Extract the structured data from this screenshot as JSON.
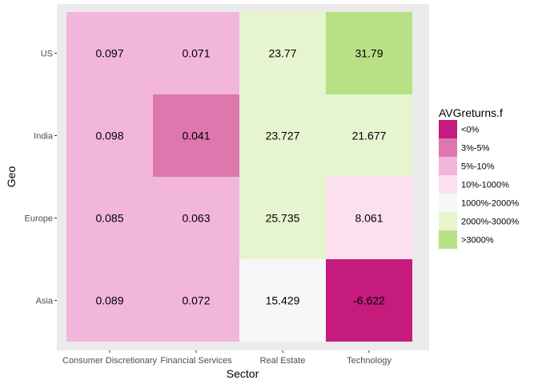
{
  "chart_data": {
    "type": "heatmap",
    "xlabel": "Sector",
    "ylabel": "Geo",
    "x_categories": [
      "Consumer Discretionary",
      "Financial Services",
      "Real Estate",
      "Technology"
    ],
    "y_categories": [
      "Asia",
      "Europe",
      "India",
      "US"
    ],
    "cells": [
      {
        "x": "Consumer Discretionary",
        "y": "US",
        "value": "0.097",
        "bin": "5%-10%"
      },
      {
        "x": "Financial Services",
        "y": "US",
        "value": "0.071",
        "bin": "5%-10%"
      },
      {
        "x": "Real Estate",
        "y": "US",
        "value": "23.77",
        "bin": "2000%-3000%"
      },
      {
        "x": "Technology",
        "y": "US",
        "value": "31.79",
        "bin": ">3000%"
      },
      {
        "x": "Consumer Discretionary",
        "y": "India",
        "value": "0.098",
        "bin": "5%-10%"
      },
      {
        "x": "Financial Services",
        "y": "India",
        "value": "0.041",
        "bin": "3%-5%"
      },
      {
        "x": "Real Estate",
        "y": "India",
        "value": "23.727",
        "bin": "2000%-3000%"
      },
      {
        "x": "Technology",
        "y": "India",
        "value": "21.677",
        "bin": "2000%-3000%"
      },
      {
        "x": "Consumer Discretionary",
        "y": "Europe",
        "value": "0.085",
        "bin": "5%-10%"
      },
      {
        "x": "Financial Services",
        "y": "Europe",
        "value": "0.063",
        "bin": "5%-10%"
      },
      {
        "x": "Real Estate",
        "y": "Europe",
        "value": "25.735",
        "bin": "2000%-3000%"
      },
      {
        "x": "Technology",
        "y": "Europe",
        "value": "8.061",
        "bin": "10%-1000%"
      },
      {
        "x": "Consumer Discretionary",
        "y": "Asia",
        "value": "0.089",
        "bin": "5%-10%"
      },
      {
        "x": "Financial Services",
        "y": "Asia",
        "value": "0.072",
        "bin": "5%-10%"
      },
      {
        "x": "Real Estate",
        "y": "Asia",
        "value": "15.429",
        "bin": "1000%-2000%"
      },
      {
        "x": "Technology",
        "y": "Asia",
        "value": "-6.622",
        "bin": "<0%"
      }
    ],
    "legend": {
      "title": "AVGreturns.f",
      "placement": "right",
      "entries": [
        {
          "label": "<0%",
          "color": "#c51b7d"
        },
        {
          "label": "3%-5%",
          "color": "#de77ae"
        },
        {
          "label": "5%-10%",
          "color": "#f1b6da"
        },
        {
          "label": "10%-1000%",
          "color": "#fde0ef"
        },
        {
          "label": "1000%-2000%",
          "color": "#f7f7f7"
        },
        {
          "label": "2000%-3000%",
          "color": "#e6f5d0"
        },
        {
          "label": ">3000%",
          "color": "#b8e186"
        }
      ]
    },
    "panel_background": "#ebebeb"
  }
}
